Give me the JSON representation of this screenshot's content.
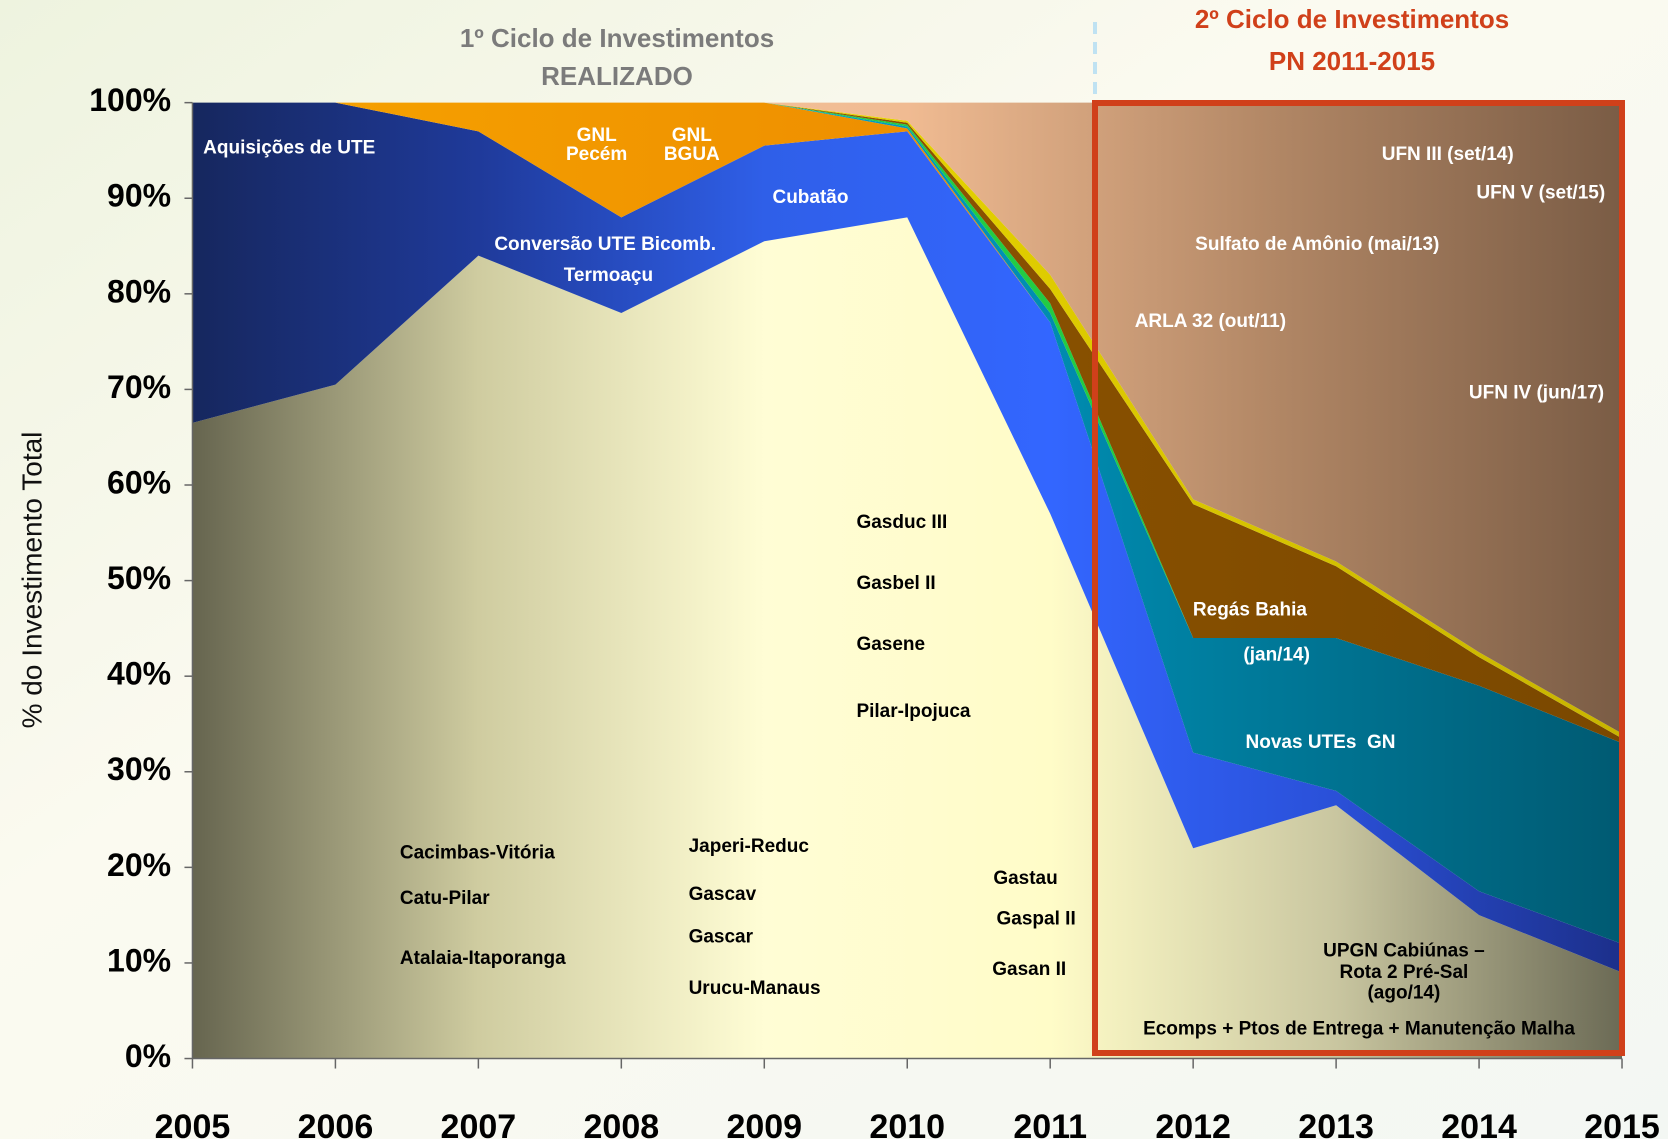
{
  "chart_data": {
    "type": "area",
    "stacked": true,
    "header_left": [
      "1º Ciclo de Investimentos",
      "REALIZADO"
    ],
    "header_right": [
      "2º Ciclo de Investimentos",
      "PN 2011-2015"
    ],
    "y_label": "% do Investimento Total",
    "categories": [
      "2005",
      "2006",
      "2007",
      "2008",
      "2009",
      "2010",
      "2011",
      "2012",
      "2013",
      "2014",
      "2015"
    ],
    "ylim": [
      0,
      100
    ],
    "yticks": [
      {
        "value": 0,
        "label": "0%"
      },
      {
        "value": 10,
        "label": "10%"
      },
      {
        "value": 20,
        "label": "20%"
      },
      {
        "value": 30,
        "label": "30%"
      },
      {
        "value": 40,
        "label": "40%"
      },
      {
        "value": 50,
        "label": "50%"
      },
      {
        "value": 60,
        "label": "60%"
      },
      {
        "value": 70,
        "label": "70%"
      },
      {
        "value": 80,
        "label": "80%"
      },
      {
        "value": 90,
        "label": "90%"
      },
      {
        "value": 100,
        "label": "100%"
      }
    ],
    "series": [
      {
        "colors": [
          "#66654f",
          "#cfcca0",
          "#fffdd5",
          "#fffcc8",
          "#c9c6a0",
          "#6b6a55"
        ],
        "values": [
          66.5,
          70.5,
          84,
          78,
          85.5,
          88,
          57,
          22,
          26.5,
          15,
          9
        ]
      },
      {
        "colors": [
          "#16275e",
          "#1f3a9a",
          "#2f5fe8",
          "#3366ff",
          "#2a50d8",
          "#1c2f8a"
        ],
        "values": [
          33.5,
          29.5,
          13,
          10,
          10,
          9,
          20,
          10,
          1.5,
          2.5,
          3
        ]
      },
      {
        "colors": [
          "#f7a400",
          "#ee8f00",
          "#d97a00"
        ],
        "values": [
          0,
          0,
          3,
          12,
          4.5,
          0.3,
          0,
          0,
          0,
          0,
          0
        ]
      },
      {
        "colors": [
          "#00c8f5",
          "#0098c0",
          "#005a72"
        ],
        "values": [
          0,
          0,
          0,
          0,
          0,
          0.2,
          1,
          12,
          16,
          21.5,
          21
        ]
      },
      {
        "colors": [
          "#22cc44",
          "#22cc44"
        ],
        "values": [
          0,
          0,
          0,
          0,
          0,
          0.2,
          1,
          0,
          0,
          0,
          0
        ]
      },
      {
        "colors": [
          "#a06400",
          "#8b5200",
          "#7a4800"
        ],
        "values": [
          0,
          0,
          0,
          0,
          0,
          0.2,
          1.5,
          14,
          7.5,
          3,
          0.5
        ]
      },
      {
        "colors": [
          "#ffee00",
          "#c8b400"
        ],
        "values": [
          0,
          0,
          0,
          0,
          0,
          0.2,
          1.5,
          0.5,
          0.5,
          0.5,
          0.5
        ]
      },
      {
        "colors": [
          "#f9d0a8",
          "#f5c49c",
          "#f0bb92",
          "#b38866",
          "#7a5c45"
        ],
        "values": [
          0,
          0,
          0,
          0,
          0,
          1.9,
          18,
          41.5,
          48,
          57.5,
          66
        ]
      }
    ],
    "annotations": [
      "Aquisições de UTE",
      "GNL",
      "Pecém",
      "GNL",
      "BGUA",
      "Cubatão",
      "Conversão UTE Bicomb.",
      "Termoaçu",
      "UFN III (set/14)",
      "UFN V (set/15)",
      "Sulfato de Amônio (mai/13)",
      "ARLA 32 (out/11)",
      "UFN IV (jun/17)",
      "Gasduc III",
      "Gasbel II",
      "Gasene",
      "Pilar-Ipojuca",
      "Regás Bahia",
      "(jan/14)",
      "Novas UTEs  GN",
      "Cacimbas-Vitória",
      "Catu-Pilar",
      "Atalaia-Itaporanga",
      "Japeri-Reduc",
      "Gascav",
      "Gascar",
      "Urucu-Manaus",
      "Gastau",
      "Gaspal II",
      "Gasan II",
      "UPGN Cabiúnas –",
      "Rota 2 Pré-Sal",
      "(ago/14)",
      "Ecomps + Ptos de Entrega + Manutenção Malha"
    ]
  }
}
